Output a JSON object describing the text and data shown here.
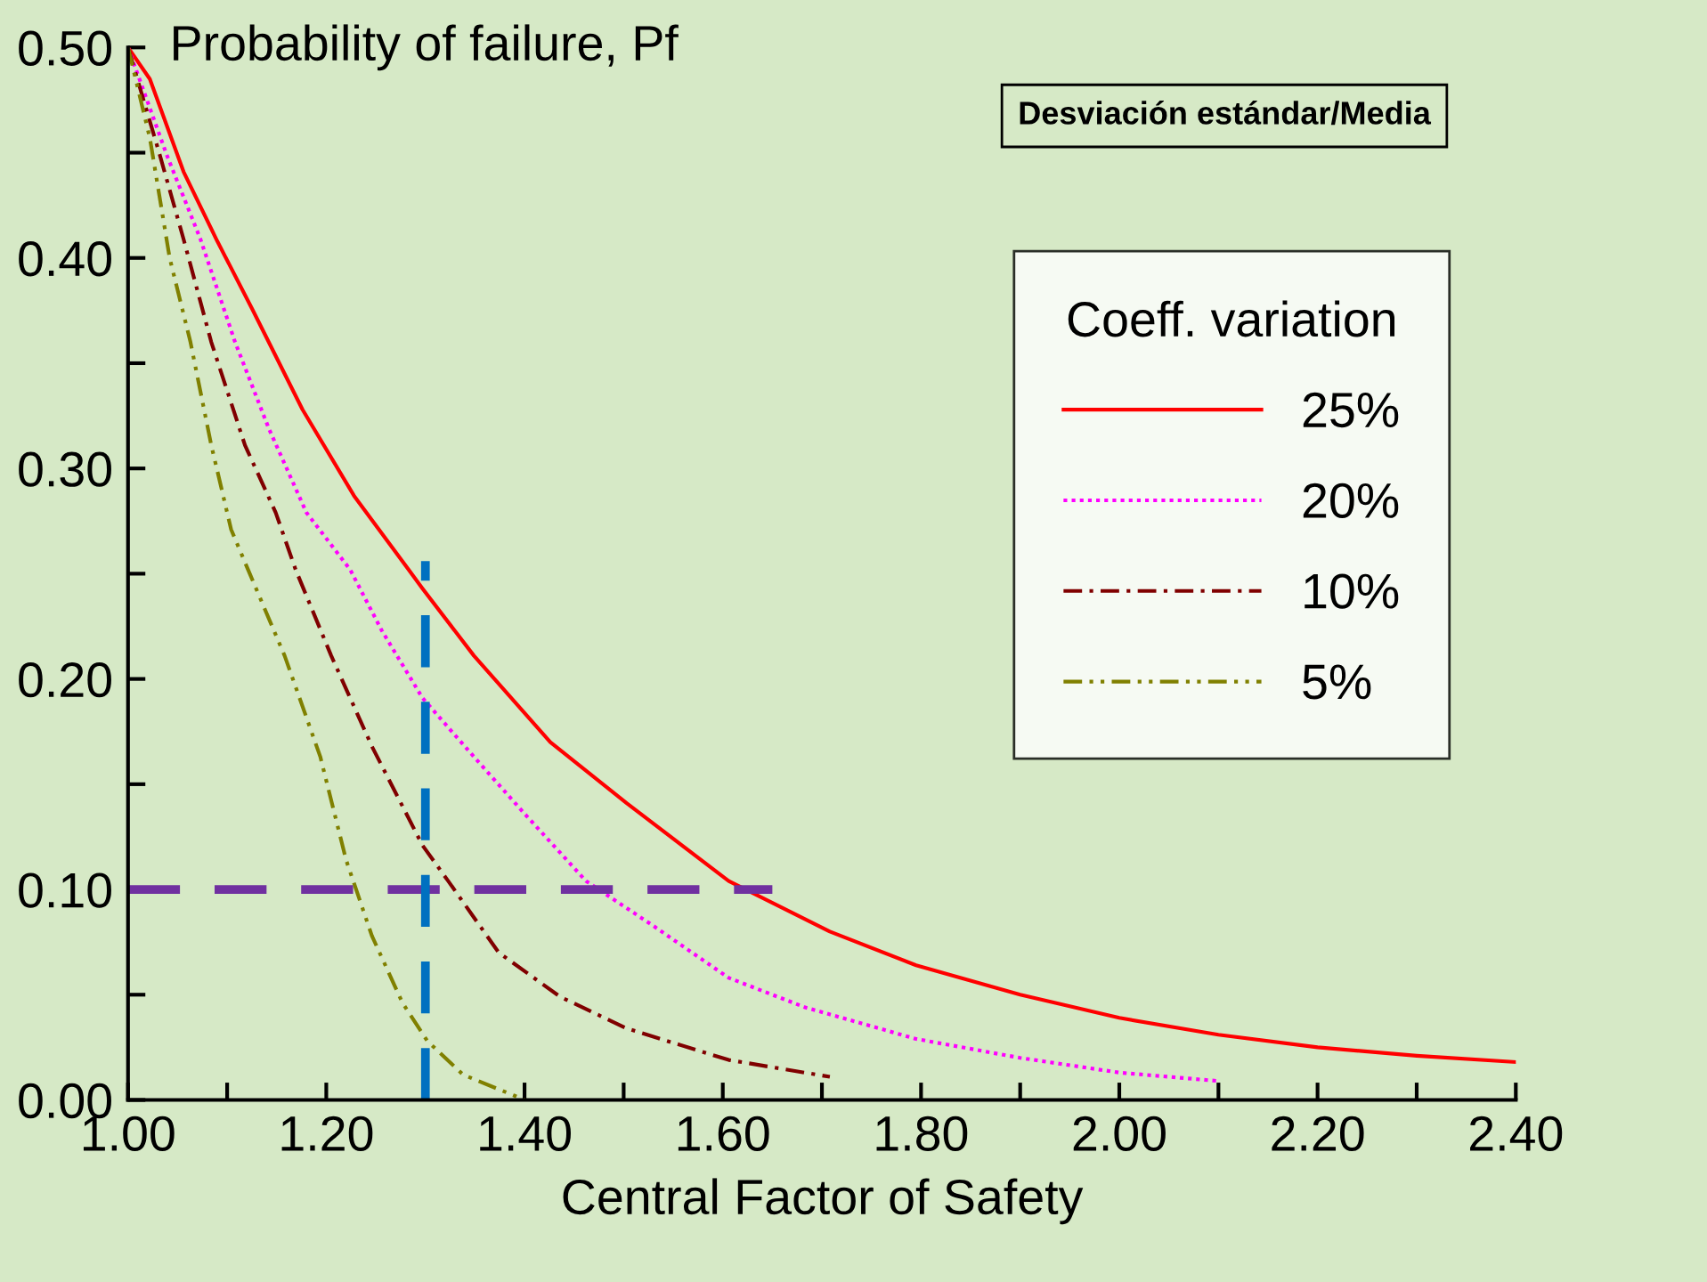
{
  "chart_data": {
    "type": "line",
    "ylabel": "Probability of failure, Pf",
    "xlabel": "Central Factor of Safety",
    "legend_title": "Coeff. variation",
    "annotations": [
      "Desviación estándar/Media"
    ],
    "xlim": [
      1.0,
      2.4
    ],
    "ylim": [
      0.0,
      0.5
    ],
    "xticks": [
      {
        "value": 1.0,
        "label": "1.00"
      },
      {
        "value": 1.2,
        "label": "1.20"
      },
      {
        "value": 1.4,
        "label": "1.40"
      },
      {
        "value": 1.6,
        "label": "1.60"
      },
      {
        "value": 1.8,
        "label": "1.80"
      },
      {
        "value": 2.0,
        "label": "2.00"
      },
      {
        "value": 2.2,
        "label": "2.20"
      },
      {
        "value": 2.4,
        "label": "2.40"
      }
    ],
    "yticks": [
      {
        "value": 0.0,
        "label": "0.00"
      },
      {
        "value": 0.1,
        "label": "0.10"
      },
      {
        "value": 0.2,
        "label": "0.20"
      },
      {
        "value": 0.3,
        "label": "0.30"
      },
      {
        "value": 0.4,
        "label": "0.40"
      },
      {
        "value": 0.5,
        "label": "0.50"
      }
    ],
    "legend": "top right",
    "grid": false,
    "series": [
      {
        "name": "25%",
        "color": "#ff0000",
        "line_style": "solid",
        "x": [
          1.0,
          1.022,
          1.056,
          1.09,
          1.125,
          1.176,
          1.228,
          1.283,
          1.297,
          1.349,
          1.426,
          1.503,
          1.606,
          1.708,
          1.795,
          1.9,
          2.0,
          2.1,
          2.2,
          2.3,
          2.4
        ],
        "values": [
          0.5,
          0.485,
          0.441,
          0.408,
          0.376,
          0.328,
          0.287,
          0.252,
          0.243,
          0.211,
          0.17,
          0.141,
          0.104,
          0.08,
          0.064,
          0.05,
          0.039,
          0.031,
          0.025,
          0.021,
          0.018
        ]
      },
      {
        "name": "20%",
        "color": "#ff00ff",
        "line_style": "dotted",
        "x": [
          1.0,
          1.039,
          1.073,
          1.108,
          1.142,
          1.18,
          1.224,
          1.256,
          1.297,
          1.349,
          1.4,
          1.462,
          1.529,
          1.606,
          1.683,
          1.795,
          1.9,
          2.0,
          2.1
        ],
        "values": [
          0.5,
          0.449,
          0.409,
          0.36,
          0.319,
          0.279,
          0.252,
          0.223,
          0.191,
          0.163,
          0.136,
          0.104,
          0.083,
          0.058,
          0.044,
          0.029,
          0.02,
          0.013,
          0.009
        ]
      },
      {
        "name": "10%",
        "color": "#800000",
        "line_style": "dashdot",
        "x": [
          1.0,
          1.032,
          1.056,
          1.084,
          1.118,
          1.149,
          1.169,
          1.205,
          1.246,
          1.297,
          1.323,
          1.374,
          1.436,
          1.503,
          1.606,
          1.708
        ],
        "values": [
          0.5,
          0.449,
          0.409,
          0.36,
          0.311,
          0.279,
          0.252,
          0.211,
          0.168,
          0.121,
          0.104,
          0.07,
          0.049,
          0.034,
          0.019,
          0.011
        ]
      },
      {
        "name": "5%",
        "color": "#808000",
        "line_style": "dashdotdot",
        "x": [
          1.0,
          1.022,
          1.042,
          1.063,
          1.084,
          1.104,
          1.121,
          1.158,
          1.194,
          1.22,
          1.246,
          1.277,
          1.302,
          1.338,
          1.39,
          1.4
        ],
        "values": [
          0.5,
          0.457,
          0.4,
          0.36,
          0.311,
          0.271,
          0.252,
          0.211,
          0.163,
          0.114,
          0.078,
          0.046,
          0.028,
          0.012,
          0.002,
          0.0
        ]
      },
      {
        "type": "line",
        "color": "#7030a0",
        "line_style": "dashed",
        "x": [
          1.0,
          1.65
        ],
        "values": [
          0.1,
          0.1
        ]
      },
      {
        "type": "line",
        "color": "#0070c0",
        "line_style": "dashed",
        "x": [
          1.3,
          1.3
        ],
        "values": [
          0.0,
          0.256
        ]
      }
    ]
  }
}
